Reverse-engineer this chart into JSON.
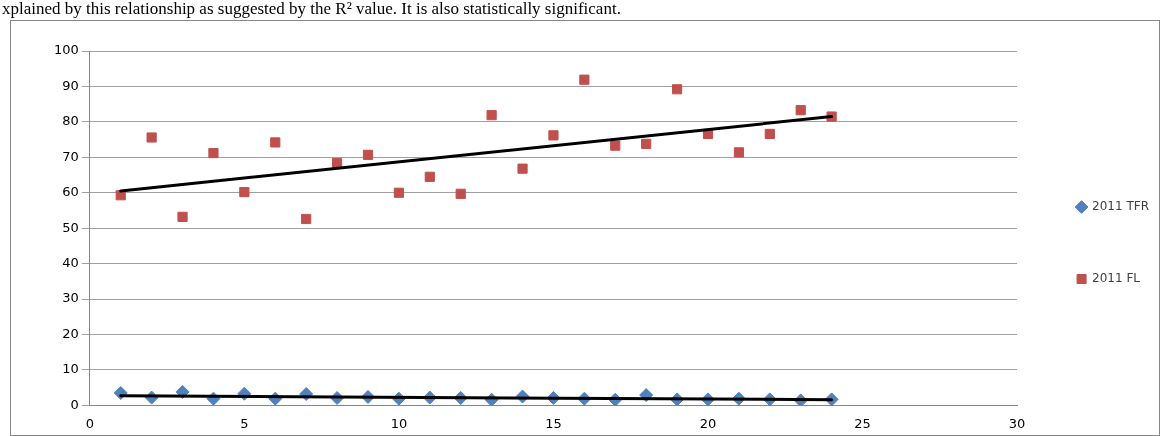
{
  "chart_data": {
    "type": "scatter",
    "annotations": [
      "xplained by this relationship as suggested by the R² value. It is also statistically significant."
    ],
    "xlim": [
      0,
      30
    ],
    "xticks": [
      0,
      5,
      10,
      15,
      20,
      25,
      30
    ],
    "ylim": [
      0,
      100
    ],
    "yticks": [
      0,
      10,
      20,
      30,
      40,
      50,
      60,
      70,
      80,
      90,
      100
    ],
    "grid": "y",
    "legend": "right",
    "series": [
      {
        "name": "2011 TFR",
        "marker": "diamond",
        "color": "#4f81bd",
        "x": [
          1,
          2,
          3,
          4,
          5,
          6,
          7,
          8,
          9,
          10,
          11,
          12,
          13,
          14,
          15,
          16,
          17,
          18,
          19,
          20,
          21,
          22,
          23,
          24
        ],
        "values": [
          3.5,
          2.2,
          3.8,
          1.9,
          3.3,
          1.9,
          3.2,
          2.1,
          2.4,
          1.9,
          2.2,
          2.1,
          1.6,
          2.5,
          2.1,
          1.9,
          1.6,
          2.9,
          1.7,
          1.7,
          1.9,
          1.7,
          1.4,
          1.7
        ]
      },
      {
        "name": "2011 FL",
        "marker": "square",
        "color": "#c0504d",
        "x": [
          1,
          2,
          3,
          4,
          5,
          6,
          7,
          8,
          9,
          10,
          11,
          12,
          13,
          14,
          15,
          16,
          17,
          18,
          19,
          20,
          21,
          22,
          23,
          24
        ],
        "values": [
          59.3,
          75.6,
          53.2,
          71.2,
          60.2,
          74.2,
          52.6,
          68.4,
          70.7,
          60,
          64.5,
          59.7,
          81.9,
          66.8,
          76.2,
          91.9,
          73.3,
          73.8,
          89.2,
          76.6,
          71.4,
          76.6,
          83.3,
          81.5
        ]
      },
      {
        "type": "line",
        "color": "#000000",
        "x": [
          1,
          24
        ],
        "values": [
          2.7,
          1.6
        ]
      },
      {
        "type": "line",
        "color": "#000000",
        "x": [
          1,
          24
        ],
        "values": [
          60.5,
          81.5
        ]
      }
    ]
  }
}
